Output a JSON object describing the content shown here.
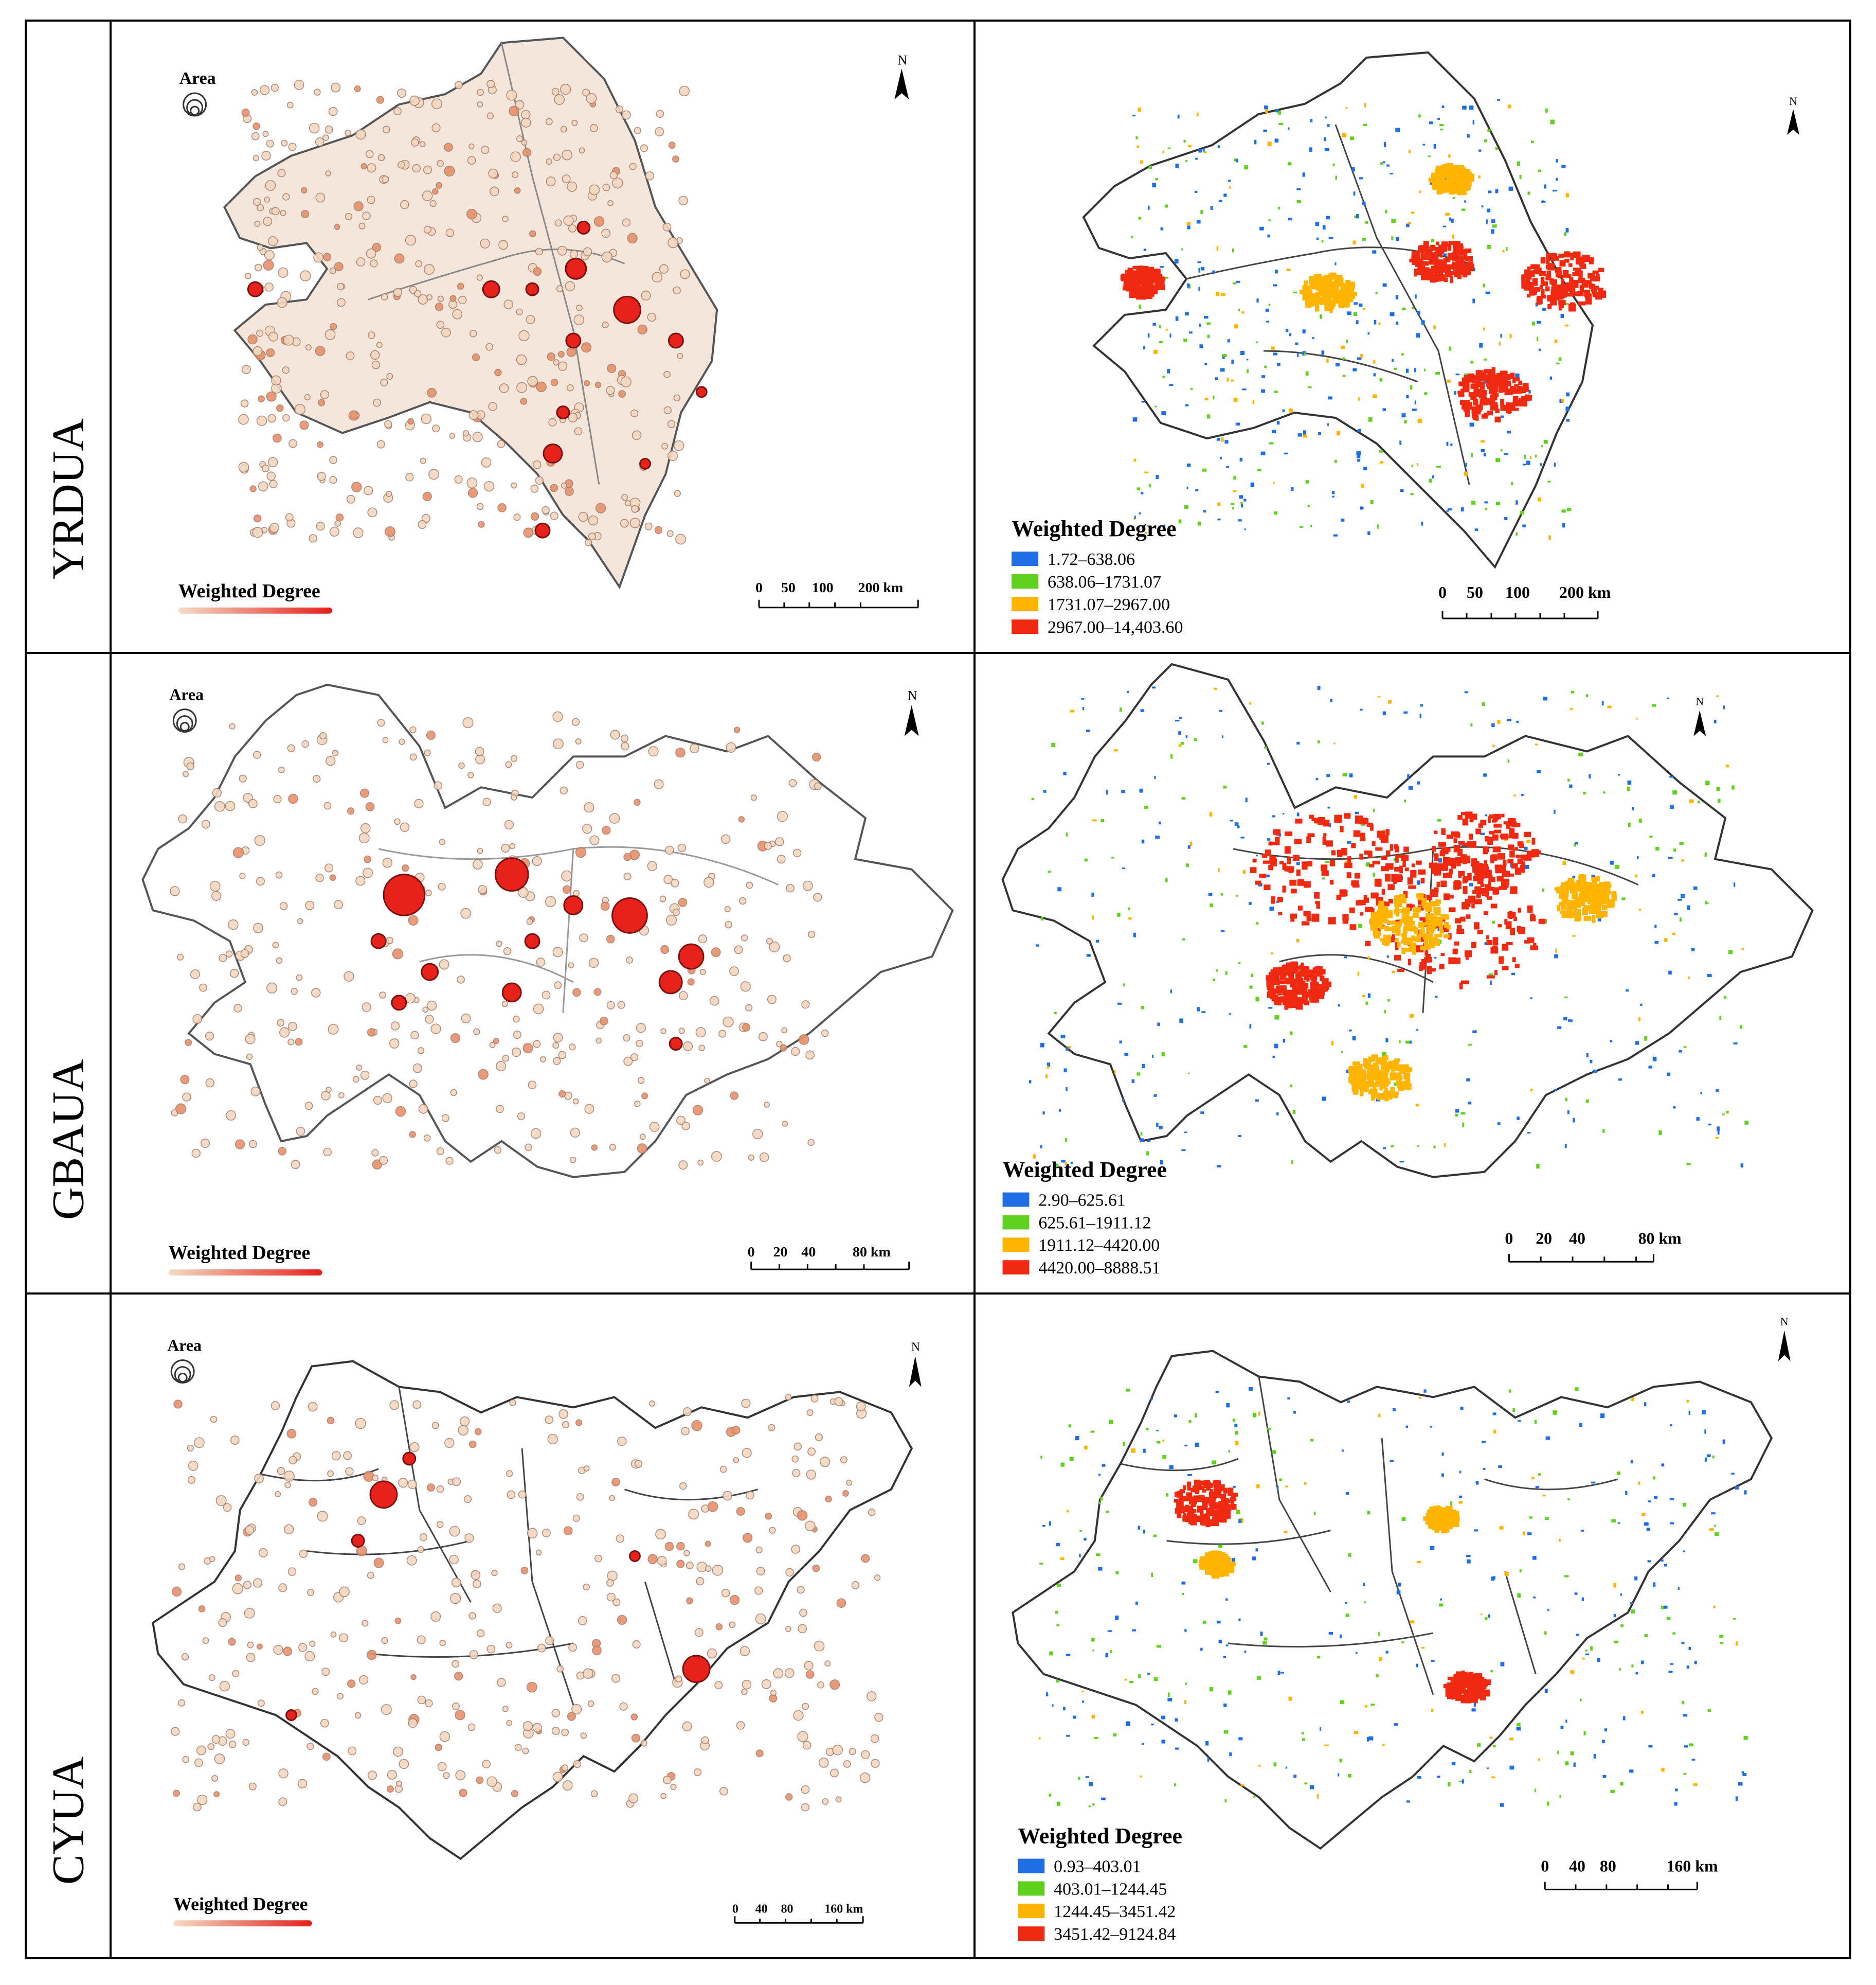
{
  "rows": [
    {
      "label": "YRDUA",
      "left": {
        "area_label": "Area",
        "north": "N",
        "wd_label": "Weighted Degree",
        "scale": {
          "ticks": [
            "0",
            "50",
            "100",
            "200 km"
          ]
        }
      },
      "right": {
        "north": "N",
        "legend_title": "Weighted Degree",
        "classes": [
          "1.72–638.06",
          "638.06–1731.07",
          "1731.07–2967.00",
          "2967.00–14,403.60"
        ],
        "scale": {
          "ticks": [
            "0",
            "50",
            "100",
            "200 km"
          ]
        }
      }
    },
    {
      "label": "GBAUA",
      "left": {
        "area_label": "Area",
        "north": "N",
        "wd_label": "Weighted Degree",
        "scale": {
          "ticks": [
            "0",
            "20",
            "40",
            "80 km"
          ]
        }
      },
      "right": {
        "north": "N",
        "legend_title": "Weighted Degree",
        "classes": [
          "2.90–625.61",
          "625.61–1911.12",
          "1911.12–4420.00",
          "4420.00–8888.51"
        ],
        "scale": {
          "ticks": [
            "0",
            "20",
            "40",
            "80 km"
          ]
        }
      }
    },
    {
      "label": "CYUA",
      "left": {
        "area_label": "Area",
        "north": "N",
        "wd_label": "Weighted Degree",
        "scale": {
          "ticks": [
            "0",
            "40",
            "80",
            "160 km"
          ]
        }
      },
      "right": {
        "north": "N",
        "legend_title": "Weighted Degree",
        "classes": [
          "0.93–403.01",
          "403.01–1244.45",
          "1244.45–3451.42",
          "3451.42–9124.84"
        ],
        "scale": {
          "ticks": [
            "0",
            "40",
            "80",
            "160 km"
          ]
        }
      }
    }
  ],
  "legend_colors": [
    "#1e6fe6",
    "#5fd11e",
    "#ffb400",
    "#f02a10"
  ],
  "node_gradient": [
    "#f5dcc4",
    "#e2201a"
  ]
}
